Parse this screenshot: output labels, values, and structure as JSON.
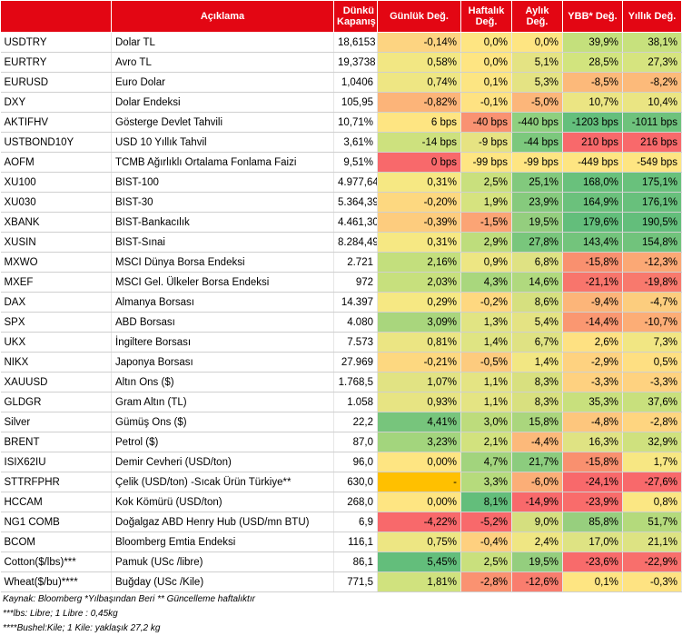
{
  "header": {
    "code": "",
    "description": "Açıklama",
    "close": "Dünkü Kapanış",
    "daily": "Günlük Değ.",
    "weekly": "Haftalık Değ.",
    "monthly": "Aylık Değ.",
    "ytd": "YBB* Değ.",
    "yearly": "Yıllık Değ."
  },
  "rows": [
    {
      "code": "USDTRY",
      "description": "Dolar TL",
      "close": "18,6153",
      "daily": "-0,14%",
      "weekly": "0,0%",
      "monthly": "0,0%",
      "ytd": "39,9%",
      "yearly": "38,1%",
      "colors": [
        "#fdd481",
        "#fee582",
        "#fee582",
        "#c4e07c",
        "#c7e17d"
      ]
    },
    {
      "code": "EURTRY",
      "description": "Avro TL",
      "close": "19,3738",
      "daily": "0,58%",
      "weekly": "0,0%",
      "monthly": "5,1%",
      "ytd": "28,5%",
      "yearly": "27,3%",
      "colors": [
        "#f2e783",
        "#fee582",
        "#e4e383",
        "#d2e47e",
        "#d6e47f"
      ]
    },
    {
      "code": "EURUSD",
      "description": "Euro Dolar",
      "close": "1,0406",
      "daily": "0,74%",
      "weekly": "0,1%",
      "monthly": "5,3%",
      "ytd": "-8,5%",
      "yearly": "-8,2%",
      "colors": [
        "#eee683",
        "#fce582",
        "#e4e383",
        "#fcb97a",
        "#fcba7a"
      ]
    },
    {
      "code": "DXY",
      "description": "Dolar Endeksi",
      "close": "105,95",
      "daily": "-0,82%",
      "weekly": "-0,1%",
      "monthly": "-5,0%",
      "ytd": "10,7%",
      "yearly": "10,4%",
      "colors": [
        "#fcb479",
        "#fee282",
        "#fcb67a",
        "#ebe583",
        "#eae583"
      ]
    },
    {
      "code": "AKTIFHV",
      "description": "Gösterge Devlet Tahvili",
      "close": "10,71%",
      "daily": "6 bps",
      "weekly": "-40 bps",
      "monthly": "-440 bps",
      "ytd": "-1203 bps",
      "yearly": "-1011 bps",
      "colors": [
        "#fee582",
        "#f99272",
        "#8fd07f",
        "#64bf7c",
        "#6ec27c"
      ]
    },
    {
      "code": "USTBOND10Y",
      "description": "USD 10 Yıllık Tahvil",
      "close": "3,61%",
      "daily": "-14 bps",
      "weekly": "-9 bps",
      "monthly": "-44 bps",
      "ytd": "210 bps",
      "yearly": "216 bps",
      "colors": [
        "#cde17e",
        "#e6e382",
        "#7cc87d",
        "#f8696b",
        "#f8696b"
      ]
    },
    {
      "code": "AOFM",
      "description": "TCMB Ağırlıklı Ortalama Fonlama Faizi",
      "close": "9,51%",
      "daily": "0 bps",
      "weekly": "-99 bps",
      "monthly": "-99 bps",
      "ytd": "-449 bps",
      "yearly": "-549 bps",
      "colors": [
        "#f8696b",
        "#fee582",
        "#fee582",
        "#fee582",
        "#fee582"
      ]
    },
    {
      "code": "XU100",
      "description": "BIST-100",
      "close": "4.977,64",
      "daily": "0,31%",
      "weekly": "2,5%",
      "monthly": "25,1%",
      "ytd": "168,0%",
      "yearly": "175,1%",
      "colors": [
        "#f6e883",
        "#c9e07d",
        "#82c97d",
        "#69c17c",
        "#69c17c"
      ]
    },
    {
      "code": "XU030",
      "description": "BIST-30",
      "close": "5.364,39",
      "daily": "-0,20%",
      "weekly": "1,9%",
      "monthly": "23,9%",
      "ytd": "164,9%",
      "yearly": "176,1%",
      "colors": [
        "#fdd880",
        "#d6e37f",
        "#86ca7d",
        "#6bc17c",
        "#68c07c"
      ]
    },
    {
      "code": "XBANK",
      "description": "BIST-Bankacılık",
      "close": "4.461,30",
      "daily": "-0,39%",
      "weekly": "-1,5%",
      "monthly": "19,5%",
      "ytd": "179,6%",
      "yearly": "190,5%",
      "colors": [
        "#fdcc7e",
        "#fba475",
        "#94ce7e",
        "#63be7b",
        "#63be7b"
      ]
    },
    {
      "code": "XUSIN",
      "description": "BIST-Sınai",
      "close": "8.284,49",
      "daily": "0,31%",
      "weekly": "2,9%",
      "monthly": "27,8%",
      "ytd": "143,4%",
      "yearly": "154,8%",
      "colors": [
        "#f6e883",
        "#bedd7c",
        "#79c67c",
        "#73c47c",
        "#71c37c"
      ]
    },
    {
      "code": "MXWO",
      "description": "MSCI Dünya Borsa Endeksi",
      "close": "2.721",
      "daily": "2,16%",
      "weekly": "0,9%",
      "monthly": "6,8%",
      "ytd": "-15,8%",
      "yearly": "-12,3%",
      "colors": [
        "#c3df7d",
        "#ede683",
        "#dfe283",
        "#f9906f",
        "#fba875"
      ]
    },
    {
      "code": "MXEF",
      "description": "MSCI Gel. Ülkeler Borsa Endeksi",
      "close": "972",
      "daily": "2,03%",
      "weekly": "4,3%",
      "monthly": "14,6%",
      "ytd": "-21,1%",
      "yearly": "-19,8%",
      "colors": [
        "#c7e07d",
        "#a9d77d",
        "#b0d97e",
        "#f8756c",
        "#f8796d"
      ]
    },
    {
      "code": "DAX",
      "description": "Almanya Borsası",
      "close": "14.397",
      "daily": "0,29%",
      "weekly": "-0,2%",
      "monthly": "8,6%",
      "ytd": "-9,4%",
      "yearly": "-4,7%",
      "colors": [
        "#f6e883",
        "#fed880",
        "#d6e07f",
        "#fcb579",
        "#fccd7e"
      ]
    },
    {
      "code": "SPX",
      "description": "ABD Borsası",
      "close": "4.080",
      "daily": "3,09%",
      "weekly": "1,3%",
      "monthly": "5,4%",
      "ytd": "-14,4%",
      "yearly": "-10,7%",
      "colors": [
        "#a9d67d",
        "#e1e483",
        "#e4e383",
        "#fa9771",
        "#fcad76"
      ]
    },
    {
      "code": "UKX",
      "description": "İngiltere Borsası",
      "close": "7.573",
      "daily": "0,81%",
      "weekly": "1,4%",
      "monthly": "6,7%",
      "ytd": "2,6%",
      "yearly": "7,3%",
      "colors": [
        "#ebe583",
        "#dfe483",
        "#dfe283",
        "#fee182",
        "#f1e683"
      ]
    },
    {
      "code": "NIKX",
      "description": "Japonya Borsası",
      "close": "27.969",
      "daily": "-0,21%",
      "weekly": "-0,5%",
      "monthly": "1,4%",
      "ytd": "-2,9%",
      "yearly": "0,5%",
      "colors": [
        "#fdd880",
        "#fdcb7e",
        "#f2e783",
        "#fed280",
        "#fedf82"
      ]
    },
    {
      "code": "XAUUSD",
      "description": "Altın Ons ($)",
      "close": "1.768,5",
      "daily": "1,07%",
      "weekly": "1,1%",
      "monthly": "8,3%",
      "ytd": "-3,3%",
      "yearly": "-3,3%",
      "colors": [
        "#e1e383",
        "#e4e483",
        "#d8e07f",
        "#fed180",
        "#fed280"
      ]
    },
    {
      "code": "GLDGR",
      "description": "Gram Altın (TL)",
      "close": "1.058",
      "daily": "0,93%",
      "weekly": "1,1%",
      "monthly": "8,3%",
      "ytd": "35,3%",
      "yearly": "37,6%",
      "colors": [
        "#e7e483",
        "#e4e483",
        "#d8e07f",
        "#c8e07d",
        "#c8e07d"
      ]
    },
    {
      "code": "Silver",
      "description": "Gümüş Ons ($)",
      "close": "22,2",
      "daily": "4,41%",
      "weekly": "3,0%",
      "monthly": "15,8%",
      "ytd": "-4,8%",
      "yearly": "-2,8%",
      "colors": [
        "#77c57c",
        "#bddc7c",
        "#aad67d",
        "#fdc67d",
        "#fed580"
      ]
    },
    {
      "code": "BRENT",
      "description": "Petrol ($)",
      "close": "87,0",
      "daily": "3,23%",
      "weekly": "2,1%",
      "monthly": "-4,4%",
      "ytd": "16,3%",
      "yearly": "32,9%",
      "colors": [
        "#a3d57d",
        "#d2e27e",
        "#fcb97a",
        "#dfe383",
        "#cfe17e"
      ]
    },
    {
      "code": "ISIX62IU",
      "description": "Demir Cevheri (USD/ton)",
      "close": "96,0",
      "daily": "0,00%",
      "weekly": "4,7%",
      "monthly": "21,7%",
      "ytd": "-15,8%",
      "yearly": "1,7%",
      "colors": [
        "#fee582",
        "#a2d47d",
        "#8ccc7e",
        "#f9906f",
        "#f7e783"
      ]
    },
    {
      "code": "STTRFPHR",
      "description": "Çelik (USD/ton) -Sıcak Ürün Türkiye**",
      "close": "630,0",
      "daily": "-",
      "weekly": "3,3%",
      "monthly": "-6,0%",
      "ytd": "-24,1%",
      "yearly": "-27,6%",
      "colors": [
        "#ffc000",
        "#b6db7c",
        "#fbae77",
        "#f8696b",
        "#f8696b"
      ]
    },
    {
      "code": "HCCAM",
      "description": "Kok Kömürü (USD/ton)",
      "close": "268,0",
      "daily": "0,00%",
      "weekly": "8,1%",
      "monthly": "-14,9%",
      "ytd": "-23,9%",
      "yearly": "0,8%",
      "colors": [
        "#fee582",
        "#63be7b",
        "#f8696b",
        "#f96c6b",
        "#fbe783"
      ]
    },
    {
      "code": "NG1 COMB",
      "description": "Doğalgaz ABD Henry Hub (USD/mn BTU)",
      "close": "6,9",
      "daily": "-4,22%",
      "weekly": "-5,2%",
      "monthly": "9,0%",
      "ytd": "85,8%",
      "yearly": "51,7%",
      "colors": [
        "#f8696b",
        "#f8696b",
        "#d5df7f",
        "#97cf7e",
        "#b4da7c"
      ]
    },
    {
      "code": "BCOM",
      "description": "Bloomberg Emtia Endeksi",
      "close": "116,1",
      "daily": "0,75%",
      "weekly": "-0,4%",
      "monthly": "2,4%",
      "ytd": "17,0%",
      "yearly": "21,1%",
      "colors": [
        "#ede683",
        "#fed07f",
        "#efe683",
        "#dee383",
        "#dde383"
      ]
    },
    {
      "code": "Cotton($/lbs)***",
      "description": "Pamuk (USc /libre)",
      "close": "86,1",
      "daily": "5,45%",
      "weekly": "2,5%",
      "monthly": "19,5%",
      "ytd": "-23,6%",
      "yearly": "-22,9%",
      "colors": [
        "#63be7b",
        "#c9e07d",
        "#94ce7e",
        "#f86b6b",
        "#f86f6c"
      ]
    },
    {
      "code": "Wheat($/bu)****",
      "description": "Buğday (USc /Kile)",
      "close": "771,5",
      "daily": "1,81%",
      "weekly": "-2,8%",
      "monthly": "-12,6%",
      "ytd": "0,1%",
      "yearly": "-0,3%",
      "colors": [
        "#d0e27e",
        "#fa9271",
        "#f97d6e",
        "#fee582",
        "#fee382"
      ]
    }
  ],
  "notes": [
    "Kaynak: Bloomberg *Yılbaşından Beri  ** Güncelleme haftalıktır",
    "***lbs: Libre; 1 Libre : 0,45kg",
    "****Bushel:Kile; 1 Kile: yaklaşık 27,2 kg"
  ]
}
